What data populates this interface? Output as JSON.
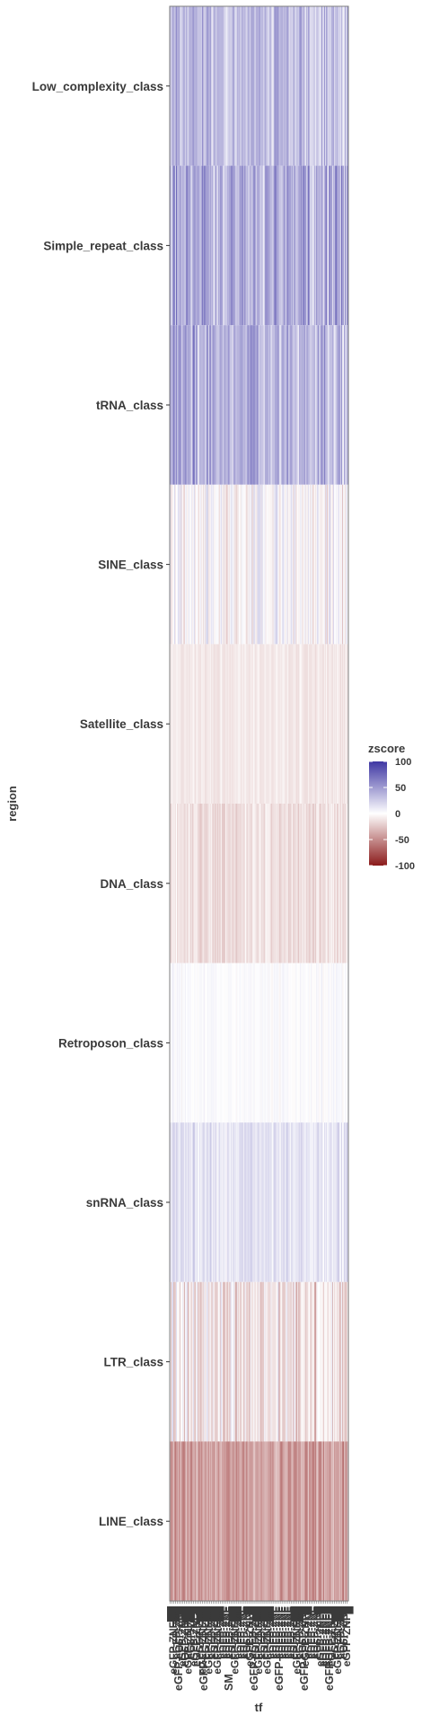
{
  "chart_data": {
    "type": "heatmap",
    "xlabel": "tf",
    "ylabel": "region",
    "regions": [
      "Low_complexity_class",
      "Simple_repeat_class",
      "tRNA_class",
      "SINE_class",
      "Satellite_class",
      "DNA_class",
      "Retroposon_class",
      "snRNA_class",
      "LTR_class",
      "LINE_class"
    ],
    "tf_count": 200,
    "tf_labels_visible": [
      "eGFP-",
      "eGFP-",
      "SM",
      "eGFP-",
      "eGFP-",
      "eGFP-",
      "eGFP-"
    ],
    "region_profiles": [
      {
        "region": "Low_complexity_class",
        "mean_zscore": 32,
        "spread": 22
      },
      {
        "region": "Simple_repeat_class",
        "mean_zscore": 40,
        "spread": 30
      },
      {
        "region": "tRNA_class",
        "mean_zscore": 38,
        "spread": 28
      },
      {
        "region": "SINE_class",
        "mean_zscore": 0,
        "spread": 22
      },
      {
        "region": "Satellite_class",
        "mean_zscore": -10,
        "spread": 6
      },
      {
        "region": "DNA_class",
        "mean_zscore": -14,
        "spread": 12
      },
      {
        "region": "Retroposon_class",
        "mean_zscore": 2,
        "spread": 6
      },
      {
        "region": "snRNA_class",
        "mean_zscore": 14,
        "spread": 12
      },
      {
        "region": "LTR_class",
        "mean_zscore": -12,
        "spread": 28
      },
      {
        "region": "LINE_class",
        "mean_zscore": -42,
        "spread": 18
      }
    ],
    "legend": {
      "title": "zscore",
      "ticks": [
        100,
        50,
        0,
        -50,
        -100
      ],
      "placement": "right",
      "low_color": "#8b1a1a",
      "mid_color": "#ffffff",
      "high_color": "#3f37a3"
    },
    "zlim": [
      -100,
      100
    ]
  }
}
